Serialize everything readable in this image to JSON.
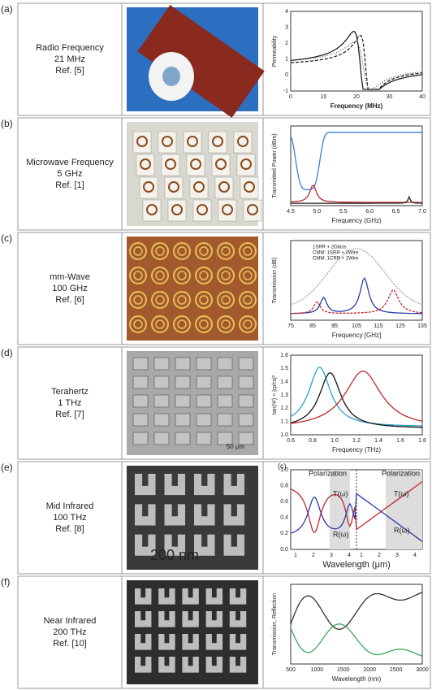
{
  "rows": [
    {
      "letter": "(a)",
      "name": "Radio Frequency",
      "frequency": "21 MHz",
      "ref": "Ref. [5]",
      "plot": {
        "xlabel": "Frequency (MHz)",
        "ylabel": "Permeability",
        "xticks": [
          "0",
          "10",
          "20",
          "30",
          "40"
        ],
        "yticks": [
          "4",
          "3",
          "2",
          "1",
          "0",
          "-1"
        ],
        "notes": []
      }
    },
    {
      "letter": "(b)",
      "name": "Microwave Frequency",
      "frequency": "5 GHz",
      "ref": "Ref. [1]",
      "plot": {
        "xlabel": "Frequency (GHz)",
        "ylabel": "Transmitted Power (dBm)",
        "xticks": [
          "4.5",
          "5.0",
          "5.5",
          "6.0",
          "6.5",
          "7.0"
        ],
        "yticks": [],
        "notes": []
      }
    },
    {
      "letter": "(c)",
      "name": "mm-Wave",
      "frequency": "100 GHz",
      "ref": "Ref. [6]",
      "plot": {
        "xlabel": "Frequency [GHz]",
        "ylabel": "Transmission (dB)",
        "xticks": [
          "75",
          "85",
          "95",
          "105",
          "115",
          "125",
          "135"
        ],
        "yticks": [],
        "notes": [
          "1SRR + 2Glass",
          "CMM: 1SRR + 2Wire",
          "CMM: 1CRR + 2Wire"
        ]
      }
    },
    {
      "letter": "(d)",
      "name": "Terahertz",
      "frequency": "1 THz",
      "ref": "Ref. [7]",
      "photo_label": "50 μm",
      "plot": {
        "xlabel": "Frequency (THz)",
        "ylabel": "tan(Ψ) = |rp/rs|²",
        "xticks": [
          "0.6",
          "0.8",
          "1.0",
          "1.2",
          "1.4",
          "1.6",
          "1.8"
        ],
        "yticks": [
          "1.6",
          "1.5",
          "1.4",
          "1.3",
          "1.2",
          "1.1",
          "1.0"
        ],
        "notes": []
      }
    },
    {
      "letter": "(e)",
      "name": "Mid Infrared",
      "frequency": "100 THz",
      "ref": "Ref. [8]",
      "photo_label": "200 nm",
      "plot": {
        "xlabel": "Wavelength (μm)",
        "ylabel": "",
        "xticks": [
          "1",
          "2",
          "3",
          "4",
          "1",
          "2",
          "3",
          "4"
        ],
        "yticks": [
          "1.0",
          "0.8",
          "0.6",
          "0.4",
          "0.2",
          "0.0"
        ],
        "notes": [
          "(c)",
          "Polarization",
          "Polarization",
          "T(ω)",
          "T(ω)",
          "R(ω)",
          "R(ω)"
        ]
      }
    },
    {
      "letter": "(f)",
      "name": "Near Infrared",
      "frequency": "200 THz",
      "ref": "Ref. [10]",
      "plot": {
        "xlabel": "Wavelength (nm)",
        "ylabel": "Transmission, Reflection",
        "xticks": [
          "500",
          "1000",
          "1500",
          "2000",
          "2500",
          "3000"
        ],
        "yticks": [],
        "notes": []
      }
    }
  ]
}
